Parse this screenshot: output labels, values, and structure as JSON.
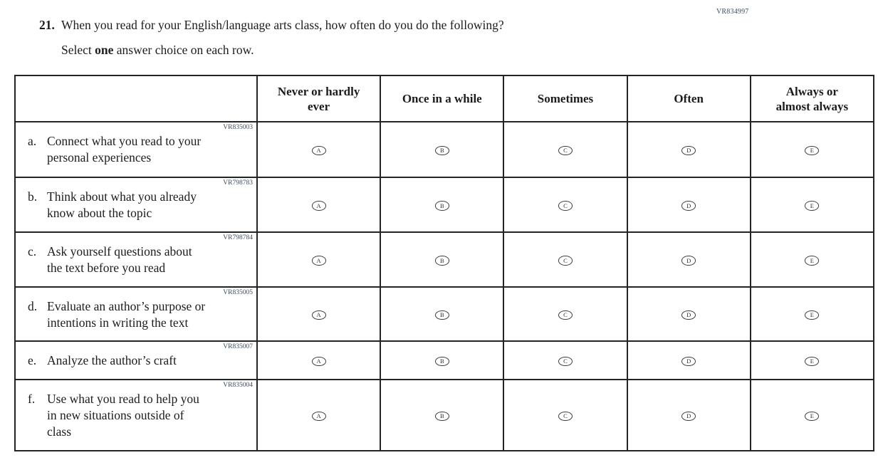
{
  "page": {
    "form_code": "VR834997",
    "question_number": "21.",
    "question_text": "When you read for your English/language arts class, how often do you do the following?",
    "instruction_prefix": "Select ",
    "instruction_bold": "one",
    "instruction_suffix": " answer choice on each row."
  },
  "table": {
    "columns": [
      "Never or hardly\never",
      "Once in a while",
      "Sometimes",
      "Often",
      "Always or\nalmost always"
    ],
    "options": [
      "A",
      "B",
      "C",
      "D",
      "E"
    ],
    "rows": [
      {
        "code": "VR835003",
        "letter": "a.",
        "text": "Connect what you read to your\npersonal experiences"
      },
      {
        "code": "VR798783",
        "letter": "b.",
        "text": "Think about what you already\nknow about the topic"
      },
      {
        "code": "VR798784",
        "letter": "c.",
        "text": "Ask yourself questions about\nthe text before you read"
      },
      {
        "code": "VR835005",
        "letter": "d.",
        "text": "Evaluate an author’s purpose or\nintentions in writing the text"
      },
      {
        "code": "VR835007",
        "letter": "e.",
        "text": "Analyze the author’s craft"
      },
      {
        "code": "VR835004",
        "letter": "f.",
        "text": "Use what you read to help you\nin new situations outside of\nclass"
      }
    ],
    "colors": {
      "border": "#242424",
      "code_text": "#3a4c60",
      "text": "#1c1c1c"
    }
  }
}
